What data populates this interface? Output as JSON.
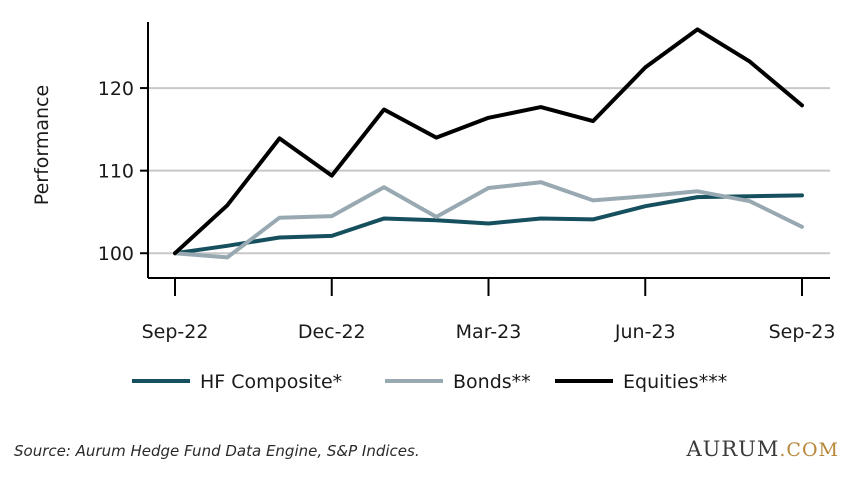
{
  "chart_data": {
    "type": "line",
    "ylabel": "Performance",
    "xlabel": "",
    "ylim": [
      97,
      128
    ],
    "yticks": [
      100,
      110,
      120
    ],
    "x": [
      "2022-09",
      "2022-10",
      "2022-11",
      "2022-12",
      "2023-01",
      "2023-02",
      "2023-03",
      "2023-04",
      "2023-05",
      "2023-06",
      "2023-07",
      "2023-08",
      "2023-09"
    ],
    "xtick_labels": [
      "Sep-22",
      "Dec-22",
      "Mar-23",
      "Jun-23",
      "Sep-23"
    ],
    "xtick_positions": [
      "2022-09",
      "2022-12",
      "2023-03",
      "2023-06",
      "2023-09"
    ],
    "grid": "horizontal",
    "legend_position": "bottom",
    "series": [
      {
        "name": "HF Composite*",
        "color": "#16505e",
        "values": [
          100,
          100.9,
          101.9,
          102.1,
          104.2,
          104.0,
          103.6,
          104.2,
          104.1,
          105.7,
          106.8,
          106.9,
          107.0
        ]
      },
      {
        "name": "Bonds**",
        "color": "#99a9b2",
        "values": [
          100,
          99.5,
          104.3,
          104.5,
          108.0,
          104.4,
          107.9,
          108.6,
          106.4,
          106.9,
          107.5,
          106.3,
          103.2
        ]
      },
      {
        "name": "Equities***",
        "color": "#000000",
        "values": [
          100,
          105.8,
          113.9,
          109.4,
          117.4,
          114.0,
          116.4,
          117.7,
          116.0,
          122.5,
          127.1,
          123.2,
          117.9
        ]
      }
    ]
  },
  "footer": {
    "source": "Source: Aurum Hedge Fund Data Engine, S&P Indices.",
    "brand_main": "AURUM",
    "brand_suffix": ".COM"
  }
}
